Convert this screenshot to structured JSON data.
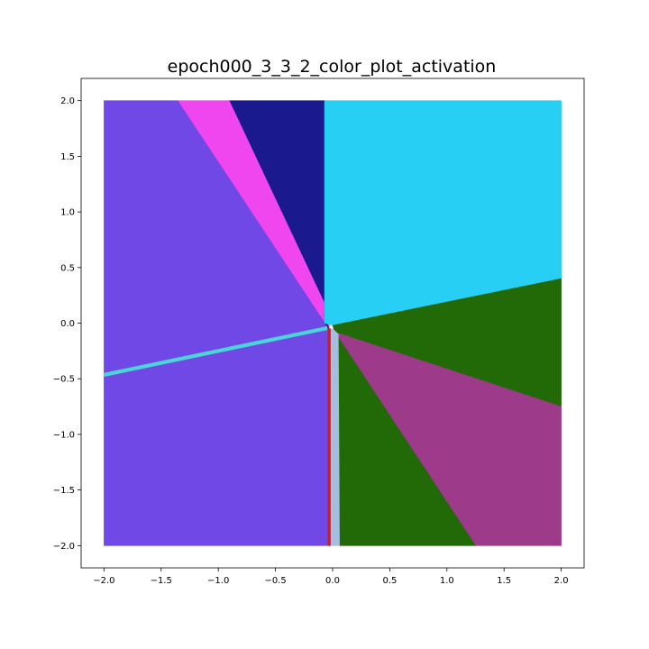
{
  "chart_data": {
    "type": "heatmap",
    "title": "epoch000_3_3_2_color_plot_activation",
    "xlabel": "",
    "ylabel": "",
    "xlim": [
      -2.2,
      2.2
    ],
    "ylim": [
      -2.2,
      2.2
    ],
    "data_extent": {
      "x": [
        -2.0,
        2.0
      ],
      "y": [
        -2.0,
        2.0
      ]
    },
    "x_ticks": [
      -2.0,
      -1.5,
      -1.0,
      -0.5,
      0.0,
      0.5,
      1.0,
      1.5,
      2.0
    ],
    "y_ticks": [
      -2.0,
      -1.5,
      -1.0,
      -0.5,
      0.0,
      0.5,
      1.0,
      1.5,
      2.0
    ],
    "x_tick_labels": [
      "−2.0",
      "−1.5",
      "−1.0",
      "−0.5",
      "0.0",
      "0.5",
      "1.0",
      "1.5",
      "2.0"
    ],
    "y_tick_labels": [
      "−2.0",
      "−1.5",
      "−1.0",
      "−0.5",
      "0.0",
      "0.5",
      "1.0",
      "1.5",
      "2.0"
    ],
    "grid": false,
    "regions": [
      {
        "name": "purple",
        "color": "#7048e6",
        "polygon": [
          [
            -2.0,
            -2.0
          ],
          [
            -0.03,
            -2.0
          ],
          [
            -0.03,
            -0.05
          ],
          [
            -0.05,
            0.0
          ],
          [
            -1.35,
            2.0
          ],
          [
            -2.0,
            2.0
          ]
        ]
      },
      {
        "name": "magenta",
        "color": "#f046f0",
        "polygon": [
          [
            -1.35,
            2.0
          ],
          [
            -0.9,
            2.0
          ],
          [
            -0.03,
            0.1
          ],
          [
            -0.03,
            -0.05
          ]
        ]
      },
      {
        "name": "navy",
        "color": "#1a1a8e",
        "polygon": [
          [
            -0.9,
            2.0
          ],
          [
            -0.07,
            2.0
          ],
          [
            -0.07,
            0.0
          ],
          [
            -0.03,
            -0.05
          ],
          [
            -0.05,
            0.0
          ],
          [
            -0.03,
            0.1
          ]
        ]
      },
      {
        "name": "cyan",
        "color": "#28cff5",
        "polygon": [
          [
            -0.07,
            2.0
          ],
          [
            2.0,
            2.0
          ],
          [
            2.0,
            0.4
          ],
          [
            0.0,
            -0.02
          ],
          [
            -0.07,
            0.0
          ]
        ]
      },
      {
        "name": "green-upper",
        "color": "#226908",
        "polygon": [
          [
            0.0,
            -0.02
          ],
          [
            2.0,
            0.4
          ],
          [
            2.0,
            -0.75
          ],
          [
            0.02,
            -0.08
          ]
        ]
      },
      {
        "name": "maroon",
        "color": "#9e3a8a",
        "polygon": [
          [
            0.02,
            -0.08
          ],
          [
            2.0,
            -0.75
          ],
          [
            2.0,
            -2.0
          ],
          [
            1.25,
            -2.0
          ]
        ]
      },
      {
        "name": "green-lower",
        "color": "#226908",
        "polygon": [
          [
            0.02,
            -0.08
          ],
          [
            1.25,
            -2.0
          ],
          [
            0.06,
            -2.0
          ],
          [
            0.05,
            -0.1
          ]
        ]
      },
      {
        "name": "lightblue-strip",
        "color": "#a4bde0",
        "polygon": [
          [
            0.0,
            -0.05
          ],
          [
            0.05,
            -0.1
          ],
          [
            0.06,
            -2.0
          ],
          [
            -0.02,
            -2.0
          ],
          [
            -0.02,
            -0.05
          ]
        ]
      },
      {
        "name": "red-strip",
        "color": "#c0202a",
        "polygon": [
          [
            -0.04,
            -0.05
          ],
          [
            -0.02,
            -0.05
          ],
          [
            -0.02,
            -2.0
          ],
          [
            -0.04,
            -2.0
          ]
        ]
      },
      {
        "name": "turquoise-line",
        "color": "#4ad6d6",
        "polygon": [
          [
            -2.0,
            -0.45
          ],
          [
            -0.05,
            -0.03
          ],
          [
            -0.05,
            -0.06
          ],
          [
            -2.0,
            -0.48
          ]
        ]
      }
    ]
  }
}
